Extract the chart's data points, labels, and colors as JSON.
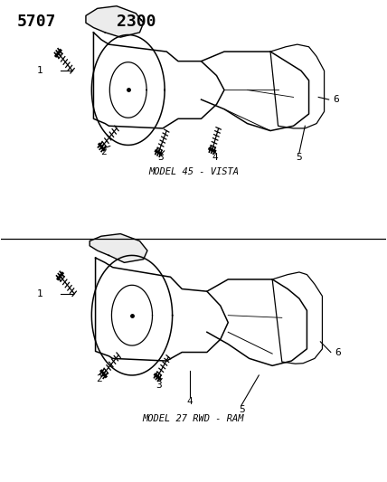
{
  "title_part1": "5707",
  "title_part2": "2300",
  "bg_color": "#ffffff",
  "diagram1_label": "MODEL 45 - VISTA",
  "diagram2_label": "MODEL 27 RWD - RAM",
  "fig_width": 4.28,
  "fig_height": 5.33,
  "dpi": 100
}
